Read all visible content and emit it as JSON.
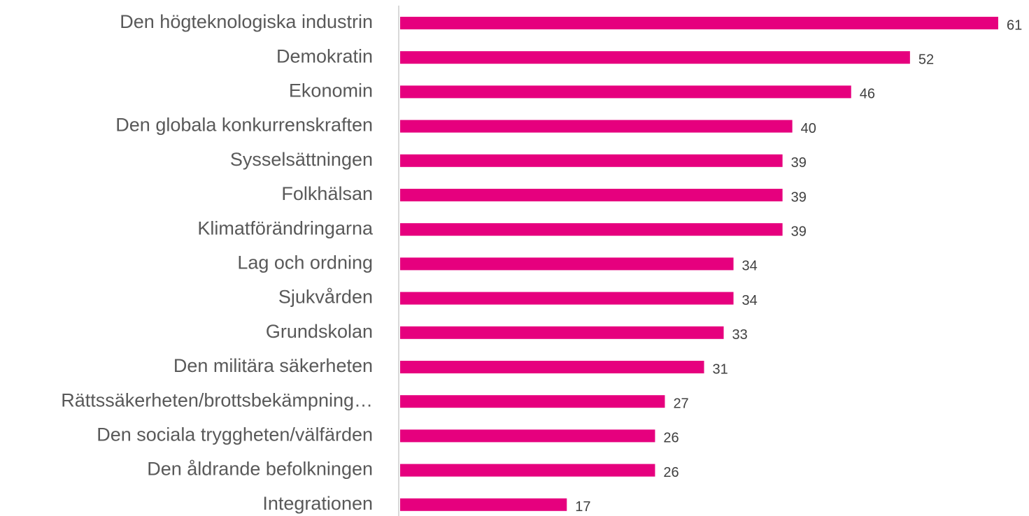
{
  "chart_data": {
    "type": "barh",
    "categories": [
      "Den högteknologiska industrin",
      "Demokratin",
      "Ekonomin",
      "Den globala konkurrenskraften",
      "Sysselsättningen",
      "Folkhälsan",
      "Klimatförändringarna",
      "Lag och ordning",
      "Sjukvården",
      "Grundskolan",
      "Den militära säkerheten",
      "Rättssäkerheten/brottsbekämpning…",
      "Den sociala tryggheten/välfärden",
      "Den åldrande befolkningen",
      "Integrationen"
    ],
    "values": [
      61,
      52,
      46,
      40,
      39,
      39,
      39,
      34,
      34,
      33,
      31,
      27,
      26,
      26,
      17
    ],
    "color": "#e6007e"
  }
}
